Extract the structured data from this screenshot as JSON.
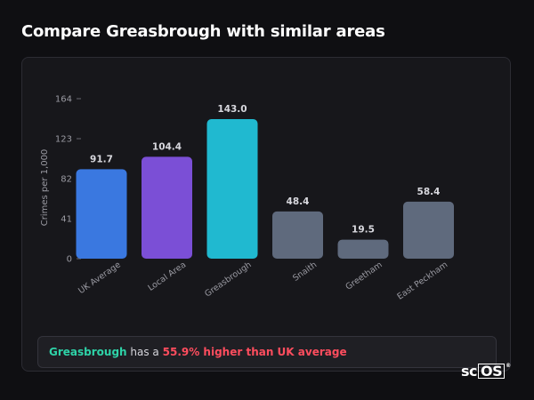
{
  "page": {
    "title": "Compare Greasbrough with similar areas"
  },
  "chart_data": {
    "type": "bar",
    "ylabel": "Crimes per 1,000",
    "ylim": [
      0,
      164
    ],
    "yticks": [
      0,
      41,
      82,
      123,
      164
    ],
    "grid": false,
    "categories": [
      "UK Average",
      "Local Area",
      "Greasbrough",
      "Snaith",
      "Greetham",
      "East Peckham"
    ],
    "values": [
      91.7,
      104.4,
      143.0,
      48.4,
      19.5,
      58.4
    ],
    "value_labels": [
      "91.7",
      "104.4",
      "143.0",
      "48.4",
      "19.5",
      "58.4"
    ],
    "colors": [
      "#3a78e0",
      "#7b4fd6",
      "#20b9d0",
      "#5f6a7d",
      "#5f6a7d",
      "#5f6a7d"
    ],
    "tick_label_color": "#9a9aa2",
    "value_label_color": "#d8d8de"
  },
  "summary": {
    "area": "Greasbrough",
    "connector": "has a",
    "difference": "55.9% higher than UK average",
    "area_color": "#2ed3a8",
    "difference_color": "#ff4d5e"
  },
  "brand": {
    "logo_prefix": "sc",
    "logo_box": "OS",
    "logo_mark": "®"
  }
}
